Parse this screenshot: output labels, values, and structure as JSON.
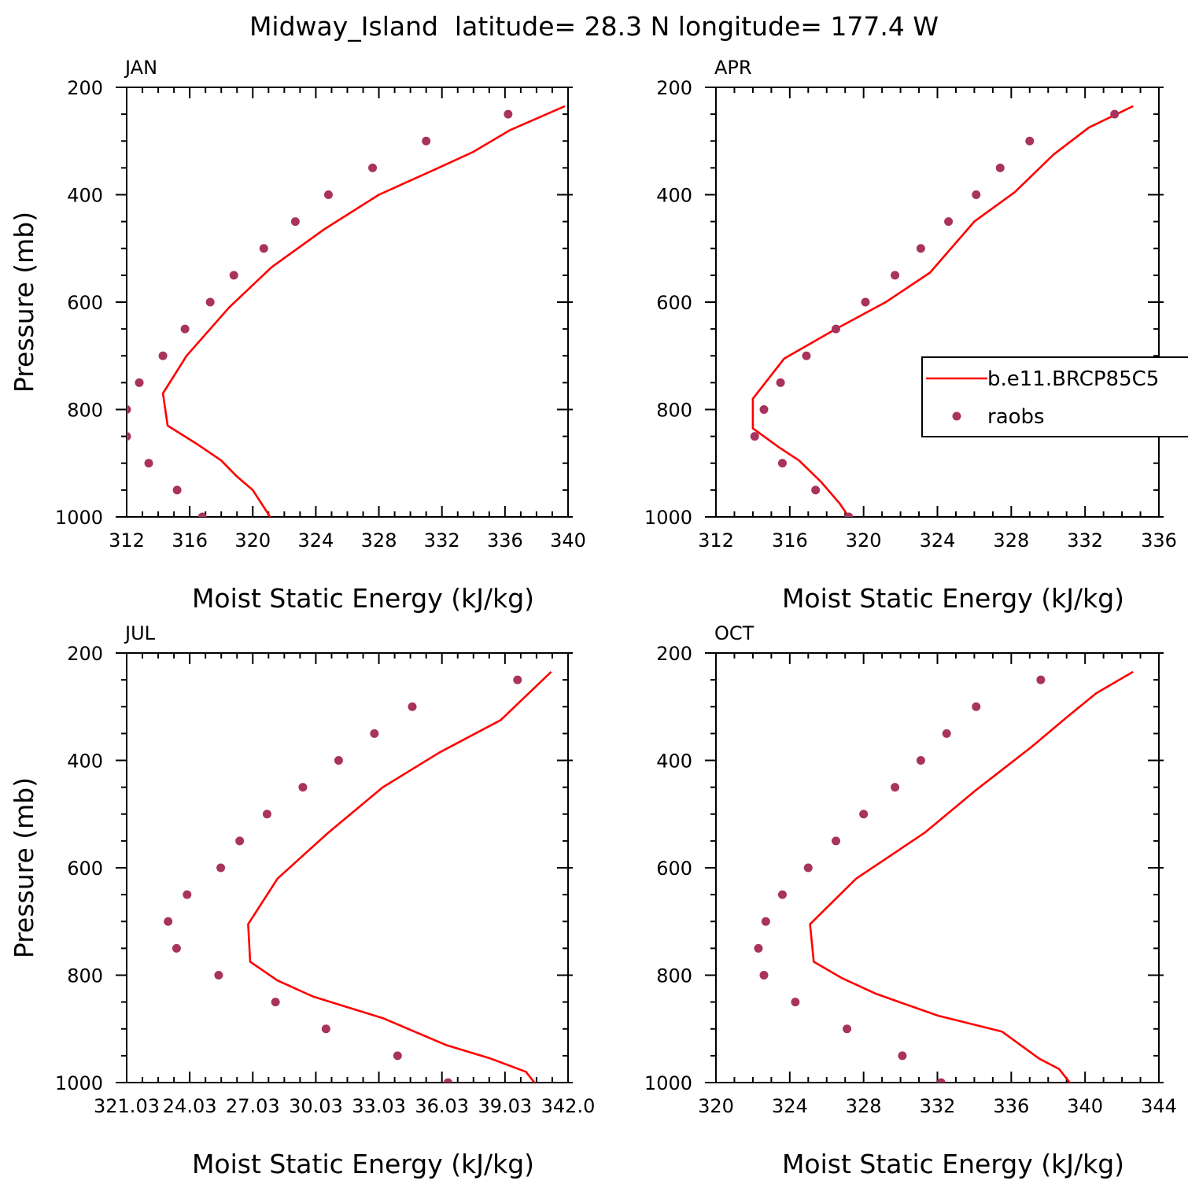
{
  "title": "Midway_Island  latitude= 28.3 N longitude= 177.4 W",
  "colors": {
    "model_line": "#ff0000",
    "raobs_marker": "#a8335c",
    "axes": "#000000"
  },
  "legend": {
    "placement": "right of APR panel, overlapping plot edge",
    "entries": [
      {
        "label": "b.e11.BRCP85C5",
        "style": "line",
        "color": "#ff0000"
      },
      {
        "label": "raobs",
        "style": "marker",
        "color": "#a8335c"
      }
    ]
  },
  "chart_data": [
    {
      "type": "line",
      "panel": "JAN",
      "xlabel": "Moist Static Energy (kJ/kg)",
      "ylabel": "Pressure (mb)",
      "xlim": [
        312,
        340
      ],
      "xticks": [
        "312",
        "316",
        "320",
        "324",
        "328",
        "332",
        "336",
        "340"
      ],
      "ylim": [
        1000,
        200
      ],
      "yticks": [
        "200",
        "400",
        "600",
        "800",
        "1000"
      ],
      "y_reversed": true,
      "series": [
        {
          "name": "b.e11.BRCP85C5",
          "kind": "line",
          "x": [
            321.3,
            320.0,
            319.0,
            318.0,
            316.5,
            314.6,
            314.3,
            315.8,
            318.5,
            321.2,
            324.5,
            328.0,
            331.4,
            334.0,
            336.3,
            339.8
          ],
          "y": [
            1009,
            950,
            925,
            895,
            865,
            830,
            770,
            700,
            610,
            535,
            465,
            400,
            355,
            320,
            280,
            235
          ]
        },
        {
          "name": "raobs",
          "kind": "scatter",
          "x": [
            316.8,
            315.2,
            313.4,
            312.0,
            312.0,
            312.8,
            314.3,
            315.7,
            317.3,
            318.8,
            320.7,
            322.7,
            324.8,
            327.6,
            331.0,
            336.2
          ],
          "y": [
            1000,
            950,
            900,
            850,
            800,
            750,
            700,
            650,
            600,
            550,
            500,
            450,
            400,
            350,
            300,
            250
          ]
        }
      ]
    },
    {
      "type": "line",
      "panel": "APR",
      "xlabel": "Moist Static Energy (kJ/kg)",
      "ylabel": "",
      "xlim": [
        312,
        336
      ],
      "xticks": [
        "312",
        "316",
        "320",
        "324",
        "328",
        "332",
        "336"
      ],
      "ylim": [
        1000,
        200
      ],
      "yticks": [
        "200",
        "400",
        "600",
        "800",
        "1000"
      ],
      "y_reversed": true,
      "series": [
        {
          "name": "b.e11.BRCP85C5",
          "kind": "line",
          "x": [
            319.5,
            318.7,
            317.7,
            316.5,
            315.4,
            314.0,
            314.0,
            315.7,
            318.5,
            321.2,
            323.6,
            326.0,
            328.2,
            330.3,
            332.2,
            334.6
          ],
          "y": [
            1015,
            975,
            935,
            895,
            870,
            835,
            780,
            705,
            650,
            600,
            545,
            450,
            395,
            325,
            275,
            235
          ]
        },
        {
          "name": "raobs",
          "kind": "scatter",
          "x": [
            319.2,
            317.4,
            315.6,
            314.1,
            314.6,
            315.5,
            316.9,
            318.5,
            320.1,
            321.7,
            323.1,
            324.6,
            326.1,
            327.4,
            329.0,
            333.6
          ],
          "y": [
            1000,
            950,
            900,
            850,
            800,
            750,
            700,
            650,
            600,
            550,
            500,
            450,
            400,
            350,
            300,
            250
          ]
        }
      ]
    },
    {
      "type": "line",
      "panel": "JUL",
      "xlabel": "Moist Static Energy (kJ/kg)",
      "ylabel": "Pressure (mb)",
      "xlim": [
        321.03,
        342.0
      ],
      "xticks": [
        "321.03",
        "24.03",
        "27.03",
        "30.03",
        "33.03",
        "36.03",
        "39.03",
        "342.0"
      ],
      "ylim": [
        1000,
        200
      ],
      "yticks": [
        "200",
        "400",
        "600",
        "800",
        "1000"
      ],
      "y_reversed": true,
      "series": [
        {
          "name": "b.e11.BRCP85C5",
          "kind": "line",
          "x": [
            340.8,
            340.5,
            340.0,
            338.3,
            336.2,
            333.2,
            329.9,
            328.2,
            326.9,
            326.8,
            328.2,
            330.6,
            333.2,
            335.9,
            338.8,
            341.2
          ],
          "y": [
            1017,
            1005,
            980,
            955,
            930,
            880,
            840,
            810,
            775,
            705,
            620,
            535,
            450,
            385,
            325,
            235
          ]
        },
        {
          "name": "raobs",
          "kind": "scatter",
          "x": [
            336.3,
            333.9,
            330.5,
            328.1,
            325.4,
            323.4,
            323.0,
            323.9,
            325.5,
            326.4,
            327.7,
            329.4,
            331.1,
            332.8,
            334.6,
            339.6
          ],
          "y": [
            1000,
            950,
            900,
            850,
            800,
            750,
            700,
            650,
            600,
            550,
            500,
            450,
            400,
            350,
            300,
            250
          ]
        }
      ]
    },
    {
      "type": "line",
      "panel": "OCT",
      "xlabel": "Moist Static Energy (kJ/kg)",
      "ylabel": "",
      "xlim": [
        320,
        344
      ],
      "xticks": [
        "320",
        "324",
        "328",
        "332",
        "336",
        "340",
        "344"
      ],
      "ylim": [
        1000,
        200
      ],
      "yticks": [
        "200",
        "400",
        "600",
        "800",
        "1000"
      ],
      "y_reversed": true,
      "series": [
        {
          "name": "b.e11.BRCP85C5",
          "kind": "line",
          "x": [
            339.4,
            338.6,
            337.5,
            335.5,
            332.0,
            328.7,
            326.8,
            325.3,
            325.1,
            327.6,
            331.3,
            334.1,
            337.1,
            339.0,
            340.6,
            342.6
          ],
          "y": [
            1010,
            975,
            955,
            905,
            875,
            835,
            805,
            775,
            705,
            620,
            535,
            455,
            375,
            320,
            275,
            235
          ]
        },
        {
          "name": "raobs",
          "kind": "scatter",
          "x": [
            332.2,
            330.1,
            327.1,
            324.3,
            322.6,
            322.3,
            322.7,
            323.6,
            325.0,
            326.5,
            328.0,
            329.7,
            331.1,
            332.5,
            334.1,
            337.6
          ],
          "y": [
            1000,
            950,
            900,
            850,
            800,
            750,
            700,
            650,
            600,
            550,
            500,
            450,
            400,
            350,
            300,
            250
          ]
        }
      ]
    }
  ]
}
